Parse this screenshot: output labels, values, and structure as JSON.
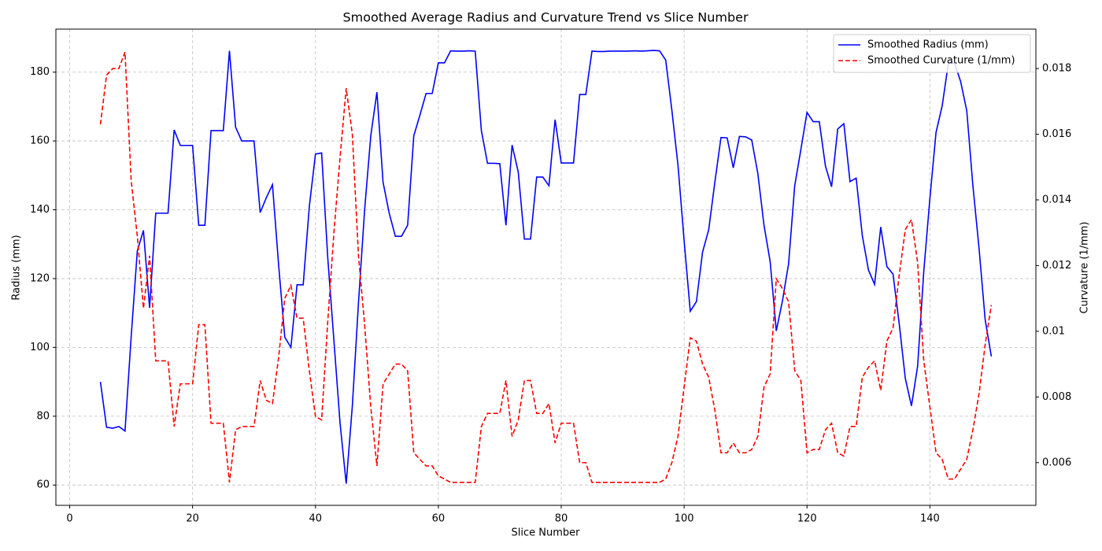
{
  "chart_data": {
    "type": "line",
    "title": "Smoothed Average Radius and Curvature Trend vs Slice Number",
    "xlabel": "Slice Number",
    "ylabel": "Radius (mm)",
    "y2label": "Curvature (1/mm)",
    "x": [
      5,
      6,
      7,
      8,
      9,
      10,
      11,
      12,
      13,
      14,
      15,
      16,
      17,
      18,
      19,
      20,
      21,
      22,
      23,
      24,
      25,
      26,
      27,
      28,
      29,
      30,
      31,
      32,
      33,
      34,
      35,
      36,
      37,
      38,
      39,
      40,
      41,
      42,
      43,
      44,
      45,
      46,
      47,
      48,
      49,
      50,
      51,
      52,
      53,
      54,
      55,
      56,
      57,
      58,
      59,
      60,
      61,
      62,
      63,
      64,
      65,
      66,
      67,
      68,
      69,
      70,
      71,
      72,
      73,
      74,
      75,
      76,
      77,
      78,
      79,
      80,
      81,
      82,
      83,
      84,
      85,
      86,
      87,
      88,
      89,
      90,
      91,
      92,
      93,
      94,
      95,
      96,
      97,
      98,
      99,
      100,
      101,
      102,
      103,
      104,
      105,
      106,
      107,
      108,
      109,
      110,
      111,
      112,
      113,
      114,
      115,
      116,
      117,
      118,
      119,
      120,
      121,
      122,
      123,
      124,
      125,
      126,
      127,
      128,
      129,
      130,
      131,
      132,
      133,
      134,
      135,
      136,
      137,
      138,
      139,
      140,
      141,
      142,
      143,
      144,
      145,
      146,
      147,
      148,
      149,
      150
    ],
    "series": [
      {
        "name": "Smoothed Radius (mm)",
        "color": "#0000ff",
        "dash": "solid",
        "values": [
          90,
          76.8,
          76.5,
          77,
          75.7,
          103,
          128,
          134,
          111.5,
          139,
          139,
          139,
          163.2,
          158.7,
          158.7,
          158.7,
          135.5,
          135.5,
          163,
          163,
          163,
          186.2,
          164,
          160,
          160,
          160,
          139.2,
          143.5,
          147.3,
          124,
          103,
          100,
          118.2,
          118.2,
          141,
          156.2,
          156.5,
          126,
          102,
          78,
          60.4,
          83,
          113,
          140,
          161.5,
          174.2,
          148,
          139,
          132.3,
          132.3,
          135.5,
          161.5,
          167.5,
          173.8,
          173.8,
          182.7,
          182.7,
          186.2,
          186.1,
          186.1,
          186.2,
          186.1,
          163,
          153.5,
          153.5,
          153.4,
          135.5,
          158.8,
          151,
          131.5,
          131.5,
          149.5,
          149.5,
          147,
          166.2,
          153.6,
          153.6,
          153.6,
          173.5,
          173.5,
          186.1,
          186,
          186,
          186.1,
          186.1,
          186.1,
          186.1,
          186.2,
          186.1,
          186.2,
          186.3,
          186.2,
          183.5,
          169,
          153,
          131,
          110.5,
          113.3,
          127.7,
          134.2,
          148,
          161,
          160.9,
          152.2,
          161.3,
          161.2,
          160.3,
          150.5,
          135.5,
          125,
          104.8,
          113.5,
          124.3,
          147,
          157.5,
          168.3,
          165.6,
          165.6,
          152.7,
          146.7,
          163.5,
          165,
          148.2,
          149.2,
          132.5,
          122.5,
          118.3,
          135,
          123.5,
          121.3,
          107,
          91,
          83,
          94.5,
          122,
          143.3,
          162.5,
          170.2,
          182.5,
          182.7,
          177.3,
          168.8,
          147,
          128.8,
          108,
          97.4
        ]
      },
      {
        "name": "Smoothed Curvature (1/mm)",
        "color": "#ff0000",
        "dash": "dashed",
        "axis": "y2",
        "values": [
          0.0163,
          0.0178,
          0.018,
          0.018,
          0.0185,
          0.0146,
          0.0129,
          0.0107,
          0.0123,
          0.0091,
          0.0091,
          0.0091,
          0.0071,
          0.0084,
          0.0084,
          0.0084,
          0.0102,
          0.0102,
          0.0072,
          0.0072,
          0.0072,
          0.0054,
          0.007,
          0.0071,
          0.0071,
          0.0071,
          0.0085,
          0.0079,
          0.0078,
          0.0092,
          0.011,
          0.0114,
          0.0104,
          0.0104,
          0.0088,
          0.0074,
          0.0073,
          0.0103,
          0.013,
          0.0153,
          0.0174,
          0.016,
          0.0123,
          0.0102,
          0.0077,
          0.0059,
          0.0084,
          0.0087,
          0.009,
          0.009,
          0.0088,
          0.0063,
          0.0061,
          0.0059,
          0.0059,
          0.0056,
          0.0055,
          0.0054,
          0.0054,
          0.0054,
          0.0054,
          0.0054,
          0.0071,
          0.0075,
          0.0075,
          0.0075,
          0.0085,
          0.0068,
          0.0073,
          0.0085,
          0.0085,
          0.0075,
          0.0075,
          0.0078,
          0.0066,
          0.0072,
          0.0072,
          0.0072,
          0.006,
          0.006,
          0.0054,
          0.0054,
          0.0054,
          0.0054,
          0.0054,
          0.0054,
          0.0054,
          0.0054,
          0.0054,
          0.0054,
          0.0054,
          0.0054,
          0.0055,
          0.006,
          0.0068,
          0.0083,
          0.0098,
          0.0097,
          0.009,
          0.0086,
          0.0076,
          0.0063,
          0.0063,
          0.0066,
          0.0063,
          0.0063,
          0.0064,
          0.0068,
          0.0083,
          0.0087,
          0.0116,
          0.0113,
          0.0109,
          0.0088,
          0.0085,
          0.0063,
          0.0064,
          0.0064,
          0.007,
          0.0072,
          0.0063,
          0.0062,
          0.0071,
          0.0071,
          0.0086,
          0.0089,
          0.0091,
          0.0082,
          0.0097,
          0.0101,
          0.0117,
          0.0131,
          0.0134,
          0.0121,
          0.0091,
          0.0077,
          0.0063,
          0.0061,
          0.0055,
          0.0055,
          0.0058,
          0.0061,
          0.007,
          0.0081,
          0.0096,
          0.0108
        ]
      }
    ],
    "xlim": [
      -2.25,
      157.25
    ],
    "xticks": [
      0,
      20,
      40,
      60,
      80,
      100,
      120,
      140
    ],
    "ylim": [
      54.1,
      192.5
    ],
    "yticks": [
      60,
      80,
      100,
      120,
      140,
      160,
      180
    ],
    "y2lim": [
      0.0047,
      0.0192
    ],
    "y2ticks": [
      0.006,
      0.008,
      0.01,
      0.012,
      0.014,
      0.016,
      0.018
    ],
    "ycolor": "#0000ff",
    "y2color": "#ff0000",
    "grid": true,
    "legend": "upper right"
  }
}
